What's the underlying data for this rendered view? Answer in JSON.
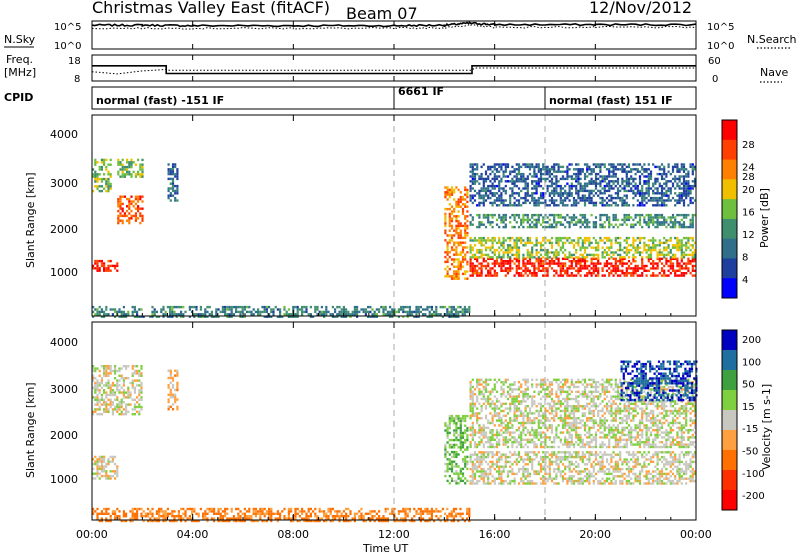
{
  "header": {
    "title": "Christmas Valley East (fitACF)",
    "beam": "Beam 07",
    "date": "12/Nov/2012"
  },
  "left_labels": {
    "nsky": "N.Sky",
    "freq": "Freq.",
    "freq_unit": "[MHz]",
    "cpid": "CPID"
  },
  "right_labels": {
    "nsearch": "N.Search",
    "nave": "Nave"
  },
  "noise_axis": {
    "left_ticks": [
      "10^5",
      "10^0"
    ],
    "right_ticks": [
      "10^5",
      "10^0"
    ]
  },
  "freq_axis": {
    "left_ticks": [
      "18",
      "8"
    ],
    "right_ticks": [
      "60",
      "0"
    ]
  },
  "cpid_segments": [
    {
      "label": "normal (fast) -151 IF",
      "start_hour": 0,
      "end_hour": 12
    },
    {
      "label": "6661 IF",
      "start_hour": 12,
      "end_hour": 18
    },
    {
      "label": "normal (fast) 151 IF",
      "start_hour": 18,
      "end_hour": 24
    }
  ],
  "x_axis": {
    "label": "Time UT",
    "ticks": [
      "00:00",
      "04:00",
      "08:00",
      "12:00",
      "16:00",
      "20:00",
      "00:00"
    ],
    "range_hours": [
      0,
      24
    ]
  },
  "panels": {
    "power": {
      "ylabel": "Slant Range [km]",
      "yticks": [
        "4000",
        "3000",
        "2000",
        "1000"
      ],
      "colorbar_label": "Power [dB]",
      "colorbar_ticks": [
        "28",
        "24",
        "20",
        "16",
        "12",
        "8",
        "4"
      ]
    },
    "velocity": {
      "ylabel": "Slant Range [km]",
      "yticks": [
        "4000",
        "3000",
        "2000",
        "1000"
      ],
      "colorbar_label": "Velocity [m s-1]",
      "colorbar_ticks": [
        "200",
        "100",
        "50",
        "15",
        "-15",
        "-50",
        "-100",
        "-200"
      ]
    }
  },
  "colors": {
    "power_scale": [
      "#0000ff",
      "#1e3f9e",
      "#2f6f8a",
      "#3f8f6e",
      "#6fbf3f",
      "#f0c000",
      "#ff8000",
      "#ff4000",
      "#ff0000"
    ],
    "velocity_scale": [
      "#0000c0",
      "#1e6fa0",
      "#3fa03f",
      "#7fd03f",
      "#c8c8c0",
      "#ffa040",
      "#ff7000",
      "#ff3000",
      "#ff0000"
    ]
  },
  "chart_data": [
    {
      "type": "line",
      "title": "Christmas Valley East (fitACF)",
      "series": [
        {
          "name": "N.Sky",
          "x": [
            0,
            2,
            4,
            8,
            12,
            14,
            15,
            16,
            20,
            24
          ],
          "y_log10": [
            4.2,
            4.2,
            4.1,
            4.1,
            4.1,
            4.2,
            4.6,
            4.3,
            4.3,
            4.3
          ]
        },
        {
          "name": "N.Search",
          "x": [
            0,
            4,
            8,
            12,
            14,
            15,
            16,
            20,
            24
          ],
          "y_log10": [
            3.6,
            3.6,
            3.6,
            3.6,
            3.7,
            4.2,
            3.8,
            3.8,
            3.8
          ]
        }
      ]
    },
    {
      "type": "line",
      "series": [
        {
          "name": "Freq.",
          "x": [
            0,
            2.95,
            2.95,
            15.1,
            15.1,
            24
          ],
          "y": [
            14.0,
            14.0,
            10.5,
            10.5,
            14.0,
            14.0
          ]
        },
        {
          "name": "Nave",
          "x": [
            0,
            1,
            2,
            2.95,
            3,
            15.1,
            15.2,
            24
          ],
          "y": [
            20,
            14,
            22,
            26,
            24,
            24,
            30,
            30
          ]
        }
      ]
    },
    {
      "type": "heatmap",
      "ylabel": "Slant Range [km]",
      "xlabel": "Time UT",
      "xlim": [
        0,
        24
      ],
      "ylim": [
        180,
        4550
      ],
      "colorbar": "Power [dB]",
      "zlim": [
        0,
        30
      ],
      "regions": [
        {
          "t0": 0.0,
          "t1": 1.0,
          "r0": 1150,
          "r1": 1400,
          "value": 27
        },
        {
          "t0": 0.0,
          "t1": 0.7,
          "r0": 2900,
          "r1": 3600,
          "value": 16
        },
        {
          "t0": 1.0,
          "t1": 2.0,
          "r0": 2200,
          "r1": 2800,
          "value": 24
        },
        {
          "t0": 1.0,
          "t1": 2.0,
          "r0": 3200,
          "r1": 3600,
          "value": 14
        },
        {
          "t0": 3.0,
          "t1": 3.4,
          "r0": 2700,
          "r1": 3500,
          "value": 8
        },
        {
          "t0": 0.0,
          "t1": 15.0,
          "r0": 180,
          "r1": 400,
          "value": 10
        },
        {
          "t0": 14.0,
          "t1": 14.9,
          "r0": 1000,
          "r1": 3000,
          "value": 22
        },
        {
          "t0": 15.0,
          "t1": 24.0,
          "r0": 1050,
          "r1": 1450,
          "value": 27
        },
        {
          "t0": 15.0,
          "t1": 24.0,
          "r0": 1450,
          "r1": 1900,
          "value": 16
        },
        {
          "t0": 15.0,
          "t1": 24.0,
          "r0": 2100,
          "r1": 2400,
          "value": 11
        },
        {
          "t0": 15.0,
          "t1": 24.0,
          "r0": 2600,
          "r1": 3500,
          "value": 7
        }
      ]
    },
    {
      "type": "heatmap",
      "ylabel": "Slant Range [km]",
      "xlabel": "Time UT",
      "xlim": [
        0,
        24
      ],
      "ylim": [
        180,
        4550
      ],
      "colorbar": "Velocity [m s-1]",
      "zlim": [
        -250,
        250
      ],
      "regions": [
        {
          "t0": 0.0,
          "t1": 1.0,
          "r0": 1100,
          "r1": 1600,
          "value": 0
        },
        {
          "t0": 0.0,
          "t1": 2.0,
          "r0": 2500,
          "r1": 3600,
          "value": 0
        },
        {
          "t0": 3.0,
          "t1": 3.4,
          "r0": 2600,
          "r1": 3500,
          "value": -30
        },
        {
          "t0": 0.0,
          "t1": 15.0,
          "r0": 180,
          "r1": 450,
          "value": -60
        },
        {
          "t0": 14.0,
          "t1": 14.9,
          "r0": 1000,
          "r1": 2500,
          "value": 40
        },
        {
          "t0": 15.0,
          "t1": 24.0,
          "r0": 1000,
          "r1": 1700,
          "value": 0
        },
        {
          "t0": 15.0,
          "t1": 24.0,
          "r0": 1800,
          "r1": 3300,
          "value": 5
        },
        {
          "t0": 21.0,
          "t1": 24.0,
          "r0": 2800,
          "r1": 3700,
          "value": 200
        }
      ]
    }
  ]
}
